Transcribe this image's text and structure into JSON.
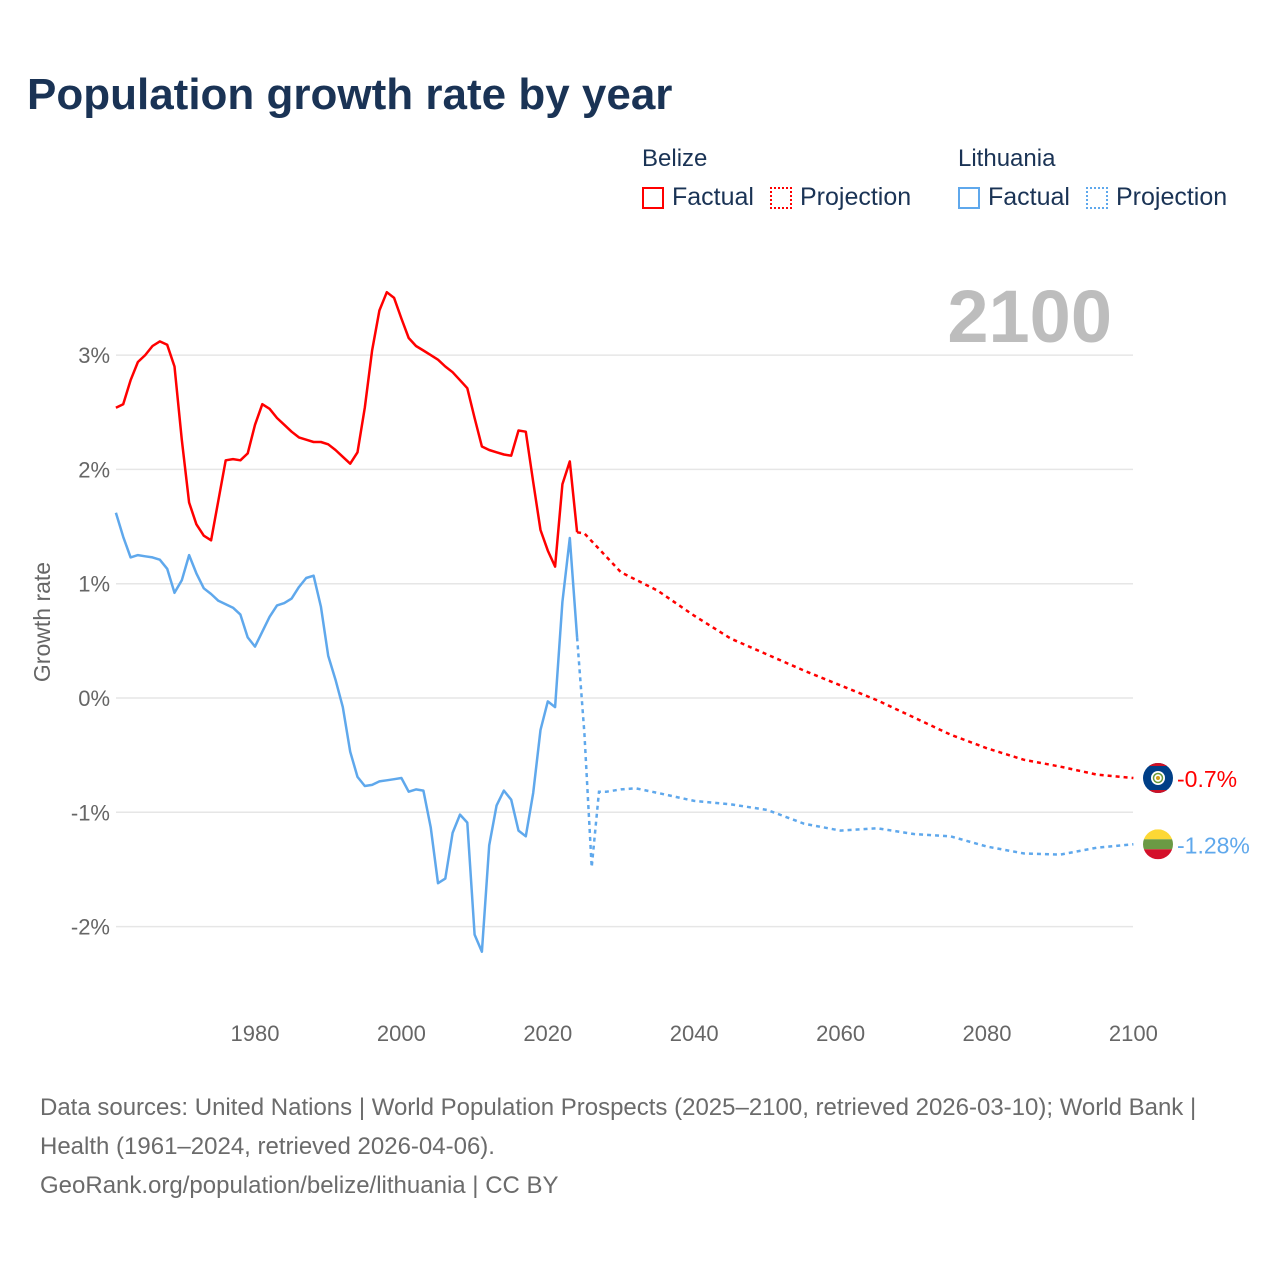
{
  "title": "Population growth rate by year",
  "legend": [
    {
      "country": "Belize",
      "color": "#ff0000",
      "factual_label": "Factual",
      "projection_label": "Projection"
    },
    {
      "country": "Lithuania",
      "color": "#5fa8ec",
      "factual_label": "Factual",
      "projection_label": "Projection"
    }
  ],
  "footer": {
    "sources": "Data sources: United Nations | World Population Prospects (2025–2100, retrieved 2026-03-10); World Bank | Health (1961–2024, retrieved 2026-04-06).",
    "credit": "GeoRank.org/population/belize/lithuania | CC BY"
  },
  "chart_data": {
    "type": "line",
    "title": "Population growth rate by year",
    "xlabel": "",
    "ylabel": "Growth rate",
    "year_label": "2100",
    "xlim": [
      1961,
      2100
    ],
    "ylim": [
      -2.6,
      3.8
    ],
    "x_ticks": [
      1980,
      2000,
      2020,
      2040,
      2060,
      2080,
      2100
    ],
    "y_ticks": [
      3,
      2,
      1,
      0,
      -1,
      -2
    ],
    "y_tick_labels": [
      "3%",
      "2%",
      "1%",
      "0%",
      "-1%",
      "-2%"
    ],
    "grid": true,
    "legend_position": "top-right",
    "series": [
      {
        "name": "Belize",
        "color": "#ff0000",
        "end_label": "-0.7%",
        "flag": "belize-flag",
        "factual": {
          "x": [
            1961,
            1962,
            1963,
            1964,
            1965,
            1966,
            1967,
            1968,
            1969,
            1970,
            1971,
            1972,
            1973,
            1974,
            1975,
            1976,
            1977,
            1978,
            1979,
            1980,
            1981,
            1982,
            1983,
            1984,
            1985,
            1986,
            1987,
            1988,
            1989,
            1990,
            1991,
            1992,
            1993,
            1994,
            1995,
            1996,
            1997,
            1998,
            1999,
            2000,
            2001,
            2002,
            2003,
            2004,
            2005,
            2006,
            2007,
            2008,
            2009,
            2010,
            2011,
            2012,
            2013,
            2014,
            2015,
            2016,
            2017,
            2018,
            2019,
            2020,
            2021,
            2022,
            2023,
            2024
          ],
          "y": [
            2.54,
            2.57,
            2.78,
            2.94,
            3.0,
            3.08,
            3.12,
            3.09,
            2.9,
            2.26,
            1.71,
            1.52,
            1.42,
            1.38,
            1.73,
            2.08,
            2.09,
            2.08,
            2.14,
            2.39,
            2.57,
            2.53,
            2.45,
            2.39,
            2.33,
            2.28,
            2.26,
            2.24,
            2.24,
            2.22,
            2.17,
            2.11,
            2.05,
            2.15,
            2.54,
            3.04,
            3.39,
            3.55,
            3.5,
            3.32,
            3.15,
            3.08,
            3.04,
            3.0,
            2.96,
            2.9,
            2.85,
            2.78,
            2.71,
            2.45,
            2.2,
            2.17,
            2.15,
            2.13,
            2.12,
            2.34,
            2.33,
            1.89,
            1.47,
            1.29,
            1.15,
            1.87,
            2.07,
            1.45
          ]
        },
        "projection": {
          "x": [
            2024,
            2025,
            2030,
            2035,
            2040,
            2045,
            2050,
            2055,
            2060,
            2065,
            2070,
            2075,
            2080,
            2085,
            2090,
            2095,
            2100
          ],
          "y": [
            1.45,
            1.44,
            1.1,
            0.94,
            0.72,
            0.52,
            0.38,
            0.24,
            0.11,
            -0.02,
            -0.17,
            -0.32,
            -0.44,
            -0.54,
            -0.6,
            -0.67,
            -0.7
          ]
        }
      },
      {
        "name": "Lithuania",
        "color": "#5fa8ec",
        "end_label": "-1.28%",
        "flag": "lithuania-flag",
        "factual": {
          "x": [
            1961,
            1962,
            1963,
            1964,
            1965,
            1966,
            1967,
            1968,
            1969,
            1970,
            1971,
            1972,
            1973,
            1974,
            1975,
            1976,
            1977,
            1978,
            1979,
            1980,
            1981,
            1982,
            1983,
            1984,
            1985,
            1986,
            1987,
            1988,
            1989,
            1990,
            1991,
            1992,
            1993,
            1994,
            1995,
            1996,
            1997,
            1998,
            1999,
            2000,
            2001,
            2002,
            2003,
            2004,
            2005,
            2006,
            2007,
            2008,
            2009,
            2010,
            2011,
            2012,
            2013,
            2014,
            2015,
            2016,
            2017,
            2018,
            2019,
            2020,
            2021,
            2022,
            2023,
            2024
          ],
          "y": [
            1.62,
            1.41,
            1.23,
            1.25,
            1.24,
            1.23,
            1.21,
            1.13,
            0.92,
            1.03,
            1.25,
            1.09,
            0.96,
            0.91,
            0.85,
            0.82,
            0.79,
            0.73,
            0.53,
            0.45,
            0.58,
            0.71,
            0.81,
            0.83,
            0.87,
            0.97,
            1.05,
            1.07,
            0.8,
            0.37,
            0.16,
            -0.08,
            -0.47,
            -0.69,
            -0.77,
            -0.76,
            -0.73,
            -0.72,
            -0.71,
            -0.7,
            -0.82,
            -0.8,
            -0.81,
            -1.13,
            -1.62,
            -1.58,
            -1.18,
            -1.02,
            -1.09,
            -2.07,
            -2.22,
            -1.29,
            -0.94,
            -0.81,
            -0.89,
            -1.16,
            -1.21,
            -0.83,
            -0.28,
            -0.03,
            -0.08,
            0.84,
            1.4,
            0.53
          ]
        },
        "projection": {
          "x": [
            2024,
            2025,
            2026,
            2027,
            2028,
            2030,
            2032,
            2035,
            2040,
            2045,
            2050,
            2055,
            2060,
            2065,
            2070,
            2075,
            2080,
            2085,
            2090,
            2095,
            2100
          ],
          "y": [
            0.53,
            -0.31,
            -1.48,
            -0.82,
            -0.82,
            -0.8,
            -0.79,
            -0.83,
            -0.9,
            -0.93,
            -0.98,
            -1.1,
            -1.16,
            -1.14,
            -1.19,
            -1.21,
            -1.3,
            -1.36,
            -1.37,
            -1.31,
            -1.28
          ]
        }
      }
    ]
  }
}
